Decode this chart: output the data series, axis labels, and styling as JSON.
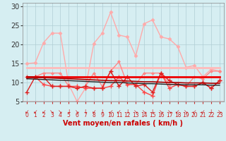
{
  "bg_color": "#d6eef2",
  "grid_color": "#b0cdd4",
  "xlabel": "Vent moyen/en rafales ( km/h )",
  "xlim": [
    -0.5,
    23.5
  ],
  "ylim": [
    5,
    31
  ],
  "yticks": [
    5,
    10,
    15,
    20,
    25,
    30
  ],
  "xticks": [
    0,
    1,
    2,
    3,
    4,
    5,
    6,
    7,
    8,
    9,
    10,
    11,
    12,
    13,
    14,
    15,
    16,
    17,
    18,
    19,
    20,
    21,
    22,
    23
  ],
  "series": [
    {
      "name": "rafales_very_light",
      "color": "#ffaaaa",
      "lw": 1.0,
      "marker": "D",
      "ms": 2.5,
      "mew": 0.5,
      "y": [
        15.0,
        15.2,
        20.5,
        23.0,
        23.0,
        9.5,
        5.0,
        8.5,
        20.3,
        23.0,
        28.5,
        22.5,
        22.0,
        17.0,
        25.5,
        26.5,
        22.0,
        21.5,
        19.5,
        14.0,
        14.5,
        11.5,
        13.5,
        13.0
      ]
    },
    {
      "name": "flat_light_pink",
      "color": "#ffbbbb",
      "lw": 2.0,
      "marker": null,
      "ms": 0,
      "y": [
        14.0,
        14.0,
        14.0,
        14.0,
        14.0,
        14.0,
        14.0,
        14.0,
        14.0,
        14.0,
        14.0,
        14.0,
        14.0,
        14.0,
        14.0,
        14.0,
        14.0,
        14.0,
        14.0,
        14.0,
        14.0,
        14.0,
        14.0,
        14.0
      ]
    },
    {
      "name": "series_pink_marker",
      "color": "#ff8888",
      "lw": 1.0,
      "marker": "D",
      "ms": 2.0,
      "mew": 0.5,
      "y": [
        11.5,
        11.5,
        12.5,
        12.5,
        12.5,
        9.0,
        8.5,
        9.0,
        12.5,
        9.0,
        13.0,
        15.5,
        9.5,
        9.5,
        12.5,
        12.5,
        12.5,
        9.5,
        9.5,
        9.0,
        11.5,
        11.0,
        13.0,
        13.0
      ]
    },
    {
      "name": "series_red_cross1",
      "color": "#ff4444",
      "lw": 1.0,
      "marker": "+",
      "ms": 4,
      "mew": 1.0,
      "y": [
        11.5,
        11.5,
        9.5,
        9.0,
        9.0,
        9.0,
        9.0,
        8.5,
        8.5,
        8.5,
        9.0,
        11.5,
        9.5,
        9.5,
        7.5,
        6.5,
        12.5,
        8.5,
        9.5,
        9.0,
        9.0,
        10.0,
        8.5,
        10.5
      ]
    },
    {
      "name": "series_red_cross2",
      "color": "#dd2222",
      "lw": 1.0,
      "marker": "+",
      "ms": 4,
      "mew": 1.0,
      "y": [
        7.5,
        11.5,
        11.5,
        9.0,
        9.0,
        9.0,
        8.5,
        9.0,
        8.5,
        8.5,
        13.0,
        9.0,
        11.5,
        9.0,
        9.5,
        7.5,
        12.5,
        10.5,
        9.5,
        9.0,
        9.0,
        10.0,
        8.5,
        10.5
      ]
    },
    {
      "name": "flat_bright_red",
      "color": "#ee0000",
      "lw": 2.0,
      "marker": null,
      "ms": 0,
      "y": [
        11.5,
        11.5,
        11.5,
        11.5,
        11.5,
        11.5,
        11.5,
        11.5,
        11.5,
        11.5,
        11.5,
        11.5,
        11.5,
        11.5,
        11.5,
        11.5,
        11.5,
        11.5,
        11.5,
        11.5,
        11.5,
        11.5,
        11.5,
        11.5
      ]
    },
    {
      "name": "trend_dark_red",
      "color": "#aa0000",
      "lw": 1.2,
      "marker": null,
      "ms": 0,
      "y": [
        11.5,
        11.4,
        11.3,
        11.2,
        11.1,
        11.0,
        10.9,
        10.8,
        10.7,
        10.6,
        10.5,
        10.5,
        10.4,
        10.3,
        10.2,
        10.2,
        10.1,
        10.0,
        10.0,
        9.9,
        9.9,
        9.9,
        9.8,
        9.8
      ]
    },
    {
      "name": "trend_black",
      "color": "#222222",
      "lw": 1.0,
      "marker": null,
      "ms": 0,
      "y": [
        11.0,
        10.9,
        10.8,
        10.7,
        10.6,
        10.5,
        10.4,
        10.3,
        10.2,
        10.1,
        10.0,
        10.0,
        9.9,
        9.8,
        9.7,
        9.7,
        9.6,
        9.5,
        9.5,
        9.4,
        9.4,
        9.4,
        9.3,
        9.3
      ]
    }
  ],
  "arrow_chars": [
    "↙",
    "↙",
    "↙",
    "↘",
    "↘",
    "↓",
    "↘",
    "↓",
    "↙",
    "↓",
    "↙",
    "↙",
    "↓",
    "↘",
    "↘",
    "↓",
    "↘",
    "↘",
    "↙",
    "↘",
    "↙",
    "↙",
    "↓",
    "↘"
  ],
  "arrow_color": "#cc2222",
  "xlabel_color": "#cc0000",
  "xlabel_fontsize": 7,
  "ytick_fontsize": 7,
  "xtick_fontsize": 5.5,
  "ytick_color": "#333333",
  "xtick_color": "#cc2222"
}
